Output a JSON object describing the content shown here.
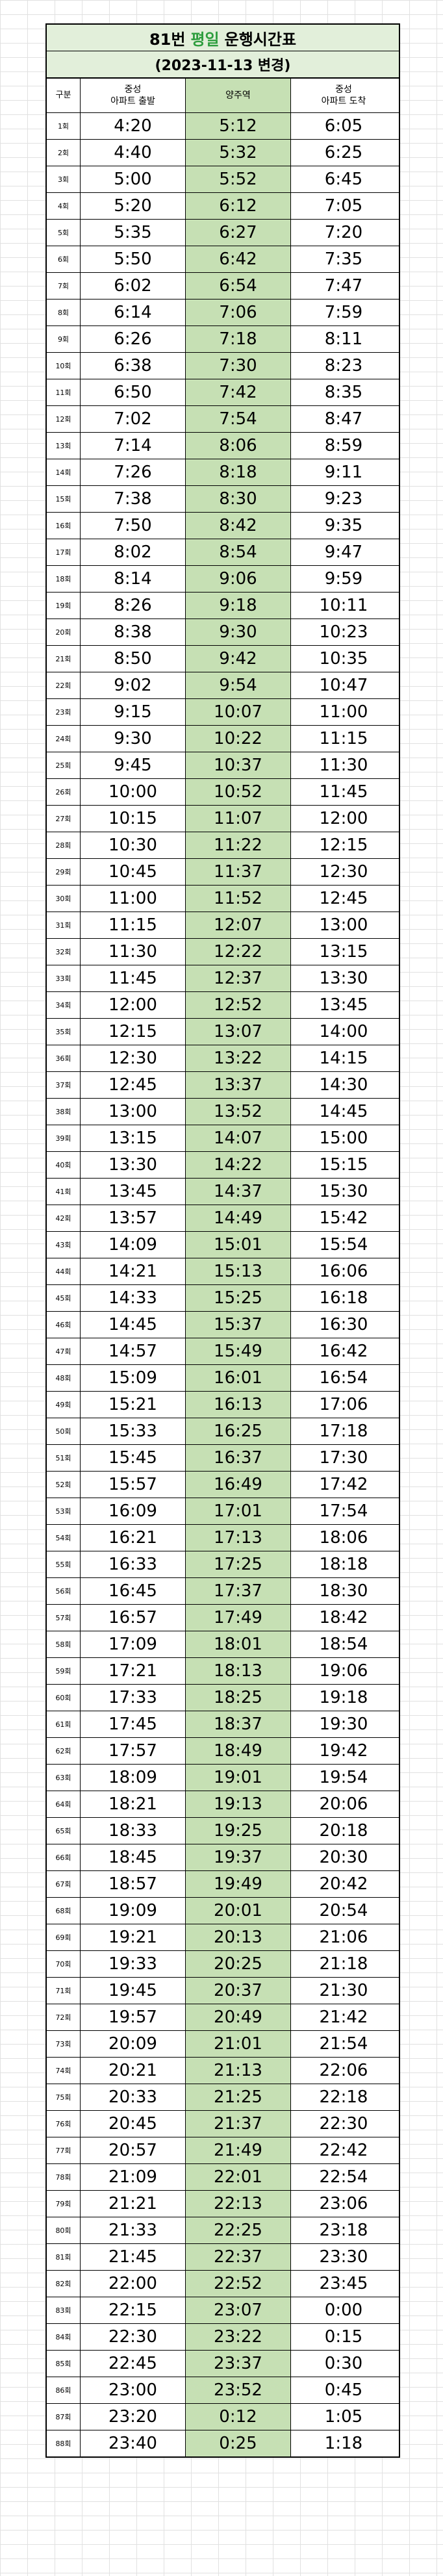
{
  "title": {
    "route": "81번",
    "day": "평일",
    "suffix": "운행시간표"
  },
  "subtitle": "(2023-11-13 변경)",
  "colors": {
    "accent_text": "#2e9e3e",
    "header_fill": "#e2efda",
    "middle_column_fill": "#c6e0b4"
  },
  "headers": [
    "구분",
    "중성\n아파트 출발",
    "양주역",
    "중성\n아파트 도착"
  ],
  "rows": [
    [
      "1회",
      "4:20",
      "5:12",
      "6:05"
    ],
    [
      "2회",
      "4:40",
      "5:32",
      "6:25"
    ],
    [
      "3회",
      "5:00",
      "5:52",
      "6:45"
    ],
    [
      "4회",
      "5:20",
      "6:12",
      "7:05"
    ],
    [
      "5회",
      "5:35",
      "6:27",
      "7:20"
    ],
    [
      "6회",
      "5:50",
      "6:42",
      "7:35"
    ],
    [
      "7회",
      "6:02",
      "6:54",
      "7:47"
    ],
    [
      "8회",
      "6:14",
      "7:06",
      "7:59"
    ],
    [
      "9회",
      "6:26",
      "7:18",
      "8:11"
    ],
    [
      "10회",
      "6:38",
      "7:30",
      "8:23"
    ],
    [
      "11회",
      "6:50",
      "7:42",
      "8:35"
    ],
    [
      "12회",
      "7:02",
      "7:54",
      "8:47"
    ],
    [
      "13회",
      "7:14",
      "8:06",
      "8:59"
    ],
    [
      "14회",
      "7:26",
      "8:18",
      "9:11"
    ],
    [
      "15회",
      "7:38",
      "8:30",
      "9:23"
    ],
    [
      "16회",
      "7:50",
      "8:42",
      "9:35"
    ],
    [
      "17회",
      "8:02",
      "8:54",
      "9:47"
    ],
    [
      "18회",
      "8:14",
      "9:06",
      "9:59"
    ],
    [
      "19회",
      "8:26",
      "9:18",
      "10:11"
    ],
    [
      "20회",
      "8:38",
      "9:30",
      "10:23"
    ],
    [
      "21회",
      "8:50",
      "9:42",
      "10:35"
    ],
    [
      "22회",
      "9:02",
      "9:54",
      "10:47"
    ],
    [
      "23회",
      "9:15",
      "10:07",
      "11:00"
    ],
    [
      "24회",
      "9:30",
      "10:22",
      "11:15"
    ],
    [
      "25회",
      "9:45",
      "10:37",
      "11:30"
    ],
    [
      "26회",
      "10:00",
      "10:52",
      "11:45"
    ],
    [
      "27회",
      "10:15",
      "11:07",
      "12:00"
    ],
    [
      "28회",
      "10:30",
      "11:22",
      "12:15"
    ],
    [
      "29회",
      "10:45",
      "11:37",
      "12:30"
    ],
    [
      "30회",
      "11:00",
      "11:52",
      "12:45"
    ],
    [
      "31회",
      "11:15",
      "12:07",
      "13:00"
    ],
    [
      "32회",
      "11:30",
      "12:22",
      "13:15"
    ],
    [
      "33회",
      "11:45",
      "12:37",
      "13:30"
    ],
    [
      "34회",
      "12:00",
      "12:52",
      "13:45"
    ],
    [
      "35회",
      "12:15",
      "13:07",
      "14:00"
    ],
    [
      "36회",
      "12:30",
      "13:22",
      "14:15"
    ],
    [
      "37회",
      "12:45",
      "13:37",
      "14:30"
    ],
    [
      "38회",
      "13:00",
      "13:52",
      "14:45"
    ],
    [
      "39회",
      "13:15",
      "14:07",
      "15:00"
    ],
    [
      "40회",
      "13:30",
      "14:22",
      "15:15"
    ],
    [
      "41회",
      "13:45",
      "14:37",
      "15:30"
    ],
    [
      "42회",
      "13:57",
      "14:49",
      "15:42"
    ],
    [
      "43회",
      "14:09",
      "15:01",
      "15:54"
    ],
    [
      "44회",
      "14:21",
      "15:13",
      "16:06"
    ],
    [
      "45회",
      "14:33",
      "15:25",
      "16:18"
    ],
    [
      "46회",
      "14:45",
      "15:37",
      "16:30"
    ],
    [
      "47회",
      "14:57",
      "15:49",
      "16:42"
    ],
    [
      "48회",
      "15:09",
      "16:01",
      "16:54"
    ],
    [
      "49회",
      "15:21",
      "16:13",
      "17:06"
    ],
    [
      "50회",
      "15:33",
      "16:25",
      "17:18"
    ],
    [
      "51회",
      "15:45",
      "16:37",
      "17:30"
    ],
    [
      "52회",
      "15:57",
      "16:49",
      "17:42"
    ],
    [
      "53회",
      "16:09",
      "17:01",
      "17:54"
    ],
    [
      "54회",
      "16:21",
      "17:13",
      "18:06"
    ],
    [
      "55회",
      "16:33",
      "17:25",
      "18:18"
    ],
    [
      "56회",
      "16:45",
      "17:37",
      "18:30"
    ],
    [
      "57회",
      "16:57",
      "17:49",
      "18:42"
    ],
    [
      "58회",
      "17:09",
      "18:01",
      "18:54"
    ],
    [
      "59회",
      "17:21",
      "18:13",
      "19:06"
    ],
    [
      "60회",
      "17:33",
      "18:25",
      "19:18"
    ],
    [
      "61회",
      "17:45",
      "18:37",
      "19:30"
    ],
    [
      "62회",
      "17:57",
      "18:49",
      "19:42"
    ],
    [
      "63회",
      "18:09",
      "19:01",
      "19:54"
    ],
    [
      "64회",
      "18:21",
      "19:13",
      "20:06"
    ],
    [
      "65회",
      "18:33",
      "19:25",
      "20:18"
    ],
    [
      "66회",
      "18:45",
      "19:37",
      "20:30"
    ],
    [
      "67회",
      "18:57",
      "19:49",
      "20:42"
    ],
    [
      "68회",
      "19:09",
      "20:01",
      "20:54"
    ],
    [
      "69회",
      "19:21",
      "20:13",
      "21:06"
    ],
    [
      "70회",
      "19:33",
      "20:25",
      "21:18"
    ],
    [
      "71회",
      "19:45",
      "20:37",
      "21:30"
    ],
    [
      "72회",
      "19:57",
      "20:49",
      "21:42"
    ],
    [
      "73회",
      "20:09",
      "21:01",
      "21:54"
    ],
    [
      "74회",
      "20:21",
      "21:13",
      "22:06"
    ],
    [
      "75회",
      "20:33",
      "21:25",
      "22:18"
    ],
    [
      "76회",
      "20:45",
      "21:37",
      "22:30"
    ],
    [
      "77회",
      "20:57",
      "21:49",
      "22:42"
    ],
    [
      "78회",
      "21:09",
      "22:01",
      "22:54"
    ],
    [
      "79회",
      "21:21",
      "22:13",
      "23:06"
    ],
    [
      "80회",
      "21:33",
      "22:25",
      "23:18"
    ],
    [
      "81회",
      "21:45",
      "22:37",
      "23:30"
    ],
    [
      "82회",
      "22:00",
      "22:52",
      "23:45"
    ],
    [
      "83회",
      "22:15",
      "23:07",
      "0:00"
    ],
    [
      "84회",
      "22:30",
      "23:22",
      "0:15"
    ],
    [
      "85회",
      "22:45",
      "23:37",
      "0:30"
    ],
    [
      "86회",
      "23:00",
      "23:52",
      "0:45"
    ],
    [
      "87회",
      "23:20",
      "0:12",
      "1:05"
    ],
    [
      "88회",
      "23:40",
      "0:25",
      "1:18"
    ]
  ]
}
